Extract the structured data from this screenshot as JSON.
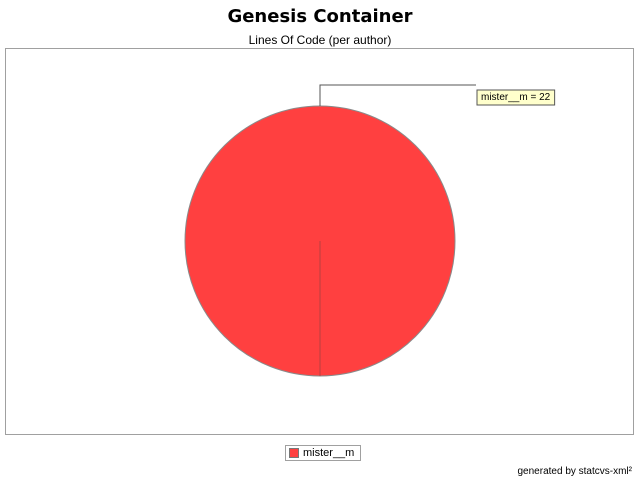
{
  "chart_data": {
    "type": "pie",
    "title": "Genesis Container",
    "subtitle": "Lines Of Code (per author)",
    "slices": [
      {
        "label": "mister__m",
        "value": 22,
        "color": "#ff4040"
      }
    ],
    "legend": {
      "placement": "bottom-center",
      "entries": [
        "mister__m"
      ]
    }
  },
  "footer": "generated by statcvs-xml²"
}
